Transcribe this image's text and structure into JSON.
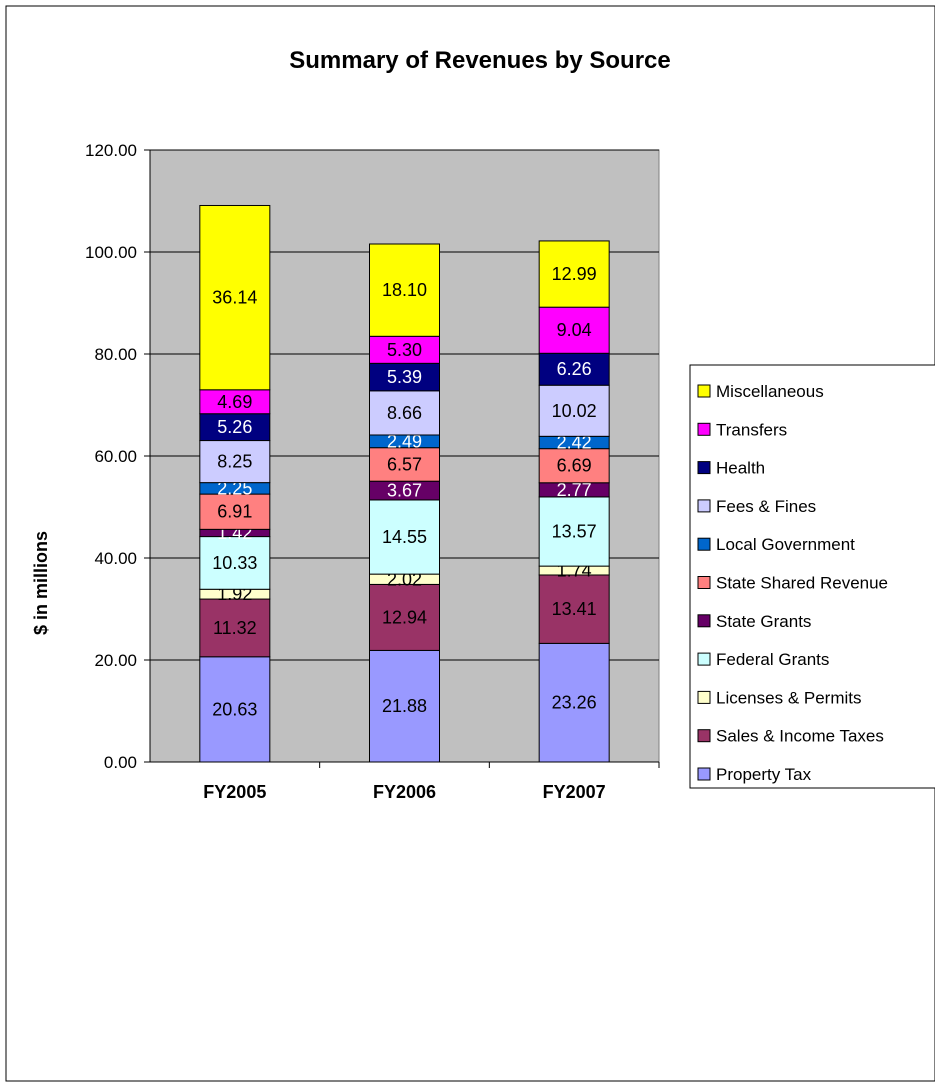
{
  "chart_data": {
    "type": "bar",
    "stacked": true,
    "title": "Summary of Revenues by Source",
    "xlabel": "",
    "ylabel": "$ in millions",
    "ylim": [
      0,
      120
    ],
    "yticks": [
      "0.00",
      "20.00",
      "40.00",
      "60.00",
      "80.00",
      "100.00",
      "120.00"
    ],
    "grid": true,
    "legend_position": "right",
    "plot_background": "#c0c0c0",
    "categories": [
      "FY2005",
      "FY2006",
      "FY2007"
    ],
    "series": [
      {
        "name": "Property Tax",
        "color": "#9999ff",
        "label_color": "#000000",
        "values": [
          20.63,
          21.88,
          23.26
        ],
        "labels": [
          "20.63",
          "21.88",
          "23.26"
        ]
      },
      {
        "name": "Sales & Income Taxes",
        "color": "#993366",
        "label_color": "#000000",
        "values": [
          11.32,
          12.94,
          13.41
        ],
        "labels": [
          "11.32",
          "12.94",
          "13.41"
        ]
      },
      {
        "name": "Licenses & Permits",
        "color": "#ffffcc",
        "label_color": "#000000",
        "values": [
          1.92,
          2.02,
          1.74
        ],
        "labels": [
          "1.92",
          "2.02",
          "1.74"
        ]
      },
      {
        "name": "Federal Grants",
        "color": "#ccffff",
        "label_color": "#000000",
        "values": [
          10.33,
          14.55,
          13.57
        ],
        "labels": [
          "10.33",
          "14.55",
          "13.57"
        ]
      },
      {
        "name": "State Grants",
        "color": "#660066",
        "label_color": "#ffffff",
        "values": [
          1.42,
          3.67,
          2.77
        ],
        "labels": [
          "1.42",
          "3.67",
          "2.77"
        ]
      },
      {
        "name": "State Shared Revenue",
        "color": "#ff8080",
        "label_color": "#000000",
        "values": [
          6.91,
          6.57,
          6.69
        ],
        "labels": [
          "6.91",
          "6.57",
          "6.69"
        ]
      },
      {
        "name": "Local Government",
        "color": "#0066cc",
        "label_color": "#ffffff",
        "values": [
          2.25,
          2.49,
          2.42
        ],
        "labels": [
          "2.25",
          "2.49",
          "2.42"
        ]
      },
      {
        "name": "Fees & Fines",
        "color": "#ccccff",
        "label_color": "#000000",
        "values": [
          8.25,
          8.66,
          10.02
        ],
        "labels": [
          "8.25",
          "8.66",
          "10.02"
        ]
      },
      {
        "name": "Health",
        "color": "#000080",
        "label_color": "#ffffff",
        "values": [
          5.26,
          5.39,
          6.26
        ],
        "labels": [
          "5.26",
          "5.39",
          "6.26"
        ]
      },
      {
        "name": "Transfers",
        "color": "#ff00ff",
        "label_color": "#000000",
        "values": [
          4.69,
          5.3,
          9.04
        ],
        "labels": [
          "4.69",
          "5.30",
          "9.04"
        ]
      },
      {
        "name": "Miscellaneous",
        "color": "#ffff00",
        "label_color": "#000000",
        "values": [
          36.14,
          18.1,
          12.99
        ],
        "labels": [
          "36.14",
          "18.10",
          "12.99"
        ]
      }
    ]
  }
}
